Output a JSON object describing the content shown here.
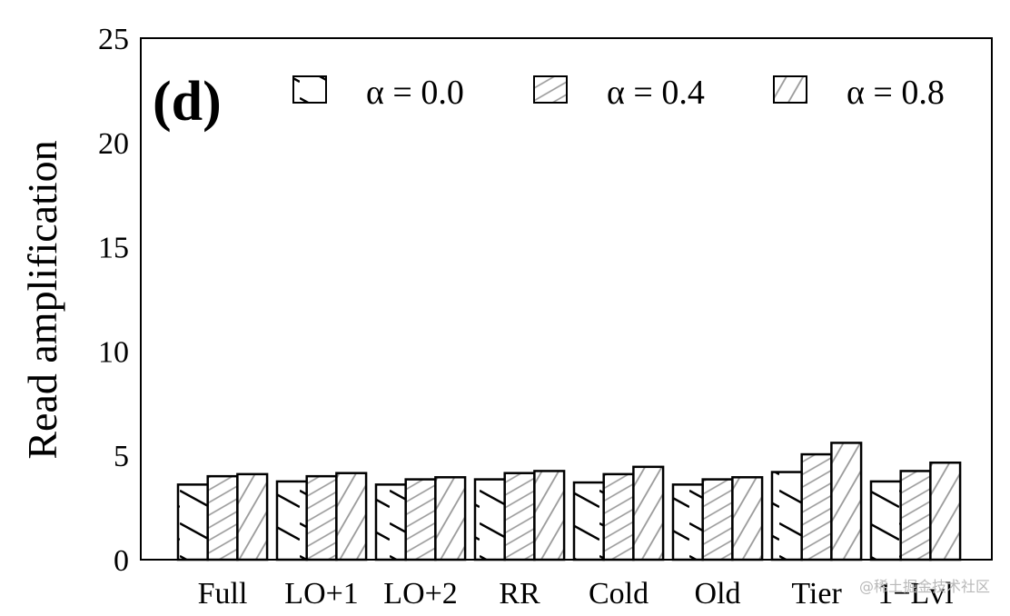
{
  "chart_data": {
    "type": "bar",
    "title": "",
    "panel_label": "(d)",
    "xlabel": "",
    "ylabel": "Read amplification",
    "ylim": [
      0,
      25
    ],
    "yticks": [
      0,
      5,
      10,
      15,
      20,
      25
    ],
    "grid": false,
    "legend_position": "top-inside",
    "categories": [
      "Full",
      "LO+1",
      "LO+2",
      "RR",
      "Cold",
      "Old",
      "Tier",
      "1−Lvl"
    ],
    "series": [
      {
        "name": "α = 0.0",
        "pattern": "backslash-hatch",
        "values": [
          3.6,
          3.75,
          3.6,
          3.85,
          3.7,
          3.6,
          4.2,
          3.75
        ]
      },
      {
        "name": "α = 0.4",
        "pattern": "dense-slash-hatch",
        "values": [
          4.0,
          4.0,
          3.85,
          4.15,
          4.1,
          3.85,
          5.05,
          4.25
        ]
      },
      {
        "name": "α = 0.8",
        "pattern": "slash-hatch",
        "values": [
          4.1,
          4.15,
          3.95,
          4.25,
          4.45,
          3.95,
          5.6,
          4.65
        ]
      }
    ]
  },
  "watermark": "@稀土掘金技术社区"
}
